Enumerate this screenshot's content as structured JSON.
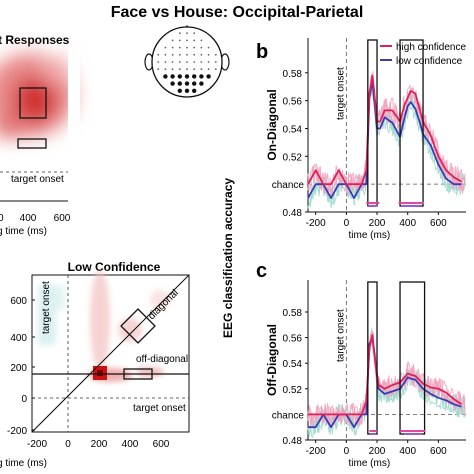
{
  "figure": {
    "title": "Face vs House: Occipital-Parietal",
    "shared_ylabel": "EEG classification accuracy",
    "colors": {
      "high": "#e0205a",
      "low": "#3a3ab8",
      "high_shade": "#f2a0bc",
      "low_shade": "#9fd8cc",
      "bar_high": "#e04a9a",
      "bar_low": "#9a5bd6",
      "heat_red": "#cc1111",
      "heat_cyan": "#33aaaa"
    }
  },
  "panel_a_top": {
    "title_fragment": "t Responses",
    "labels": {
      "onset": "target onset",
      "xlabel": "g time (ms)"
    },
    "xticks": [
      "0",
      "400",
      "600"
    ]
  },
  "panel_low": {
    "title": "Low Confidence",
    "labels": {
      "onset_vertical": "target onset",
      "onset_horizontal": "target onset",
      "diagonal": "diagonal",
      "off_diagonal": "off-diagonal",
      "xlabel": "g time (ms)"
    },
    "xticks": [
      "-200",
      "0",
      "200",
      "400",
      "600"
    ],
    "yticks": [
      "600",
      "400",
      "200",
      "0",
      "-200"
    ]
  },
  "head_icon": {
    "name": "scalp-electrode-map"
  },
  "chart_data": [
    {
      "panel": "b",
      "type": "line",
      "ylabel": "On-Diagonal",
      "xlabel": "time (ms)",
      "onset_label": "target onset",
      "chance_label": "chance",
      "xlim": [
        -250,
        780
      ],
      "ylim": [
        0.48,
        0.605
      ],
      "xticks": [
        -200,
        0,
        200,
        400,
        600
      ],
      "yticks": [
        0.48,
        0.52,
        0.54,
        0.56,
        0.58
      ],
      "ytick_labels": [
        "0.48",
        "0.52",
        "0.54",
        "0.56",
        "0.58"
      ],
      "chance": 0.5,
      "legend": [
        "high confidence",
        "low confidence"
      ],
      "legend_position": "top-right",
      "x": [
        -250,
        -200,
        -150,
        -100,
        -50,
        0,
        50,
        100,
        130,
        150,
        170,
        180,
        200,
        220,
        250,
        300,
        350,
        380,
        400,
        420,
        450,
        480,
        500,
        550,
        600,
        650,
        700,
        750
      ],
      "series": [
        {
          "name": "high confidence",
          "values": [
            0.5,
            0.51,
            0.5,
            0.5,
            0.51,
            0.5,
            0.5,
            0.5,
            0.51,
            0.565,
            0.578,
            0.568,
            0.545,
            0.545,
            0.553,
            0.553,
            0.545,
            0.557,
            0.562,
            0.567,
            0.565,
            0.553,
            0.545,
            0.535,
            0.52,
            0.51,
            0.505,
            0.502
          ]
        },
        {
          "name": "low confidence",
          "values": [
            0.49,
            0.5,
            0.5,
            0.49,
            0.5,
            0.5,
            0.49,
            0.5,
            0.5,
            0.562,
            0.574,
            0.562,
            0.54,
            0.54,
            0.548,
            0.544,
            0.534,
            0.548,
            0.556,
            0.559,
            0.554,
            0.544,
            0.536,
            0.528,
            0.514,
            0.504,
            0.5,
            0.5
          ]
        }
      ],
      "boxes": [
        [
          140,
          200
        ],
        [
          350,
          500
        ]
      ],
      "significance_bars": [
        {
          "series": "high confidence",
          "ranges": [
            [
              130,
              215
            ],
            [
              340,
              505
            ]
          ]
        },
        {
          "series": "low confidence",
          "ranges": [
            [
              140,
              205
            ],
            [
              355,
              485
            ]
          ]
        }
      ]
    },
    {
      "panel": "c",
      "type": "line",
      "ylabel": "Off-Diagonal",
      "xlabel": "time (ms)",
      "onset_label": "target onset",
      "chance_label": "chance",
      "xlim": [
        -250,
        780
      ],
      "ylim": [
        0.48,
        0.605
      ],
      "xticks": [
        -200,
        0,
        200,
        400,
        600
      ],
      "yticks": [
        0.48,
        0.52,
        0.54,
        0.56,
        0.58
      ],
      "ytick_labels": [
        "0.48",
        "0.52",
        "0.54",
        "0.56",
        "0.58"
      ],
      "chance": 0.5,
      "x": [
        -250,
        -200,
        -150,
        -100,
        -50,
        0,
        50,
        100,
        130,
        150,
        170,
        190,
        210,
        250,
        300,
        350,
        380,
        400,
        420,
        450,
        500,
        550,
        600,
        650,
        700,
        750
      ],
      "series": [
        {
          "name": "high confidence",
          "values": [
            0.5,
            0.5,
            0.5,
            0.5,
            0.5,
            0.5,
            0.5,
            0.5,
            0.51,
            0.552,
            0.562,
            0.54,
            0.523,
            0.52,
            0.523,
            0.525,
            0.529,
            0.532,
            0.531,
            0.53,
            0.524,
            0.521,
            0.52,
            0.517,
            0.512,
            0.508
          ]
        },
        {
          "name": "low confidence",
          "values": [
            0.49,
            0.49,
            0.5,
            0.49,
            0.5,
            0.5,
            0.49,
            0.5,
            0.5,
            0.555,
            0.56,
            0.54,
            0.52,
            0.516,
            0.518,
            0.52,
            0.525,
            0.529,
            0.528,
            0.527,
            0.52,
            0.516,
            0.513,
            0.511,
            0.508,
            0.506
          ]
        }
      ],
      "boxes": [
        [
          140,
          200
        ],
        [
          350,
          510
        ]
      ],
      "significance_bars": [
        {
          "series": "high confidence",
          "ranges": [
            [
              150,
              200
            ],
            [
              350,
              515
            ]
          ]
        },
        {
          "series": "low confidence",
          "ranges": [
            [
              155,
              195
            ],
            [
              375,
              495
            ]
          ]
        }
      ]
    }
  ]
}
